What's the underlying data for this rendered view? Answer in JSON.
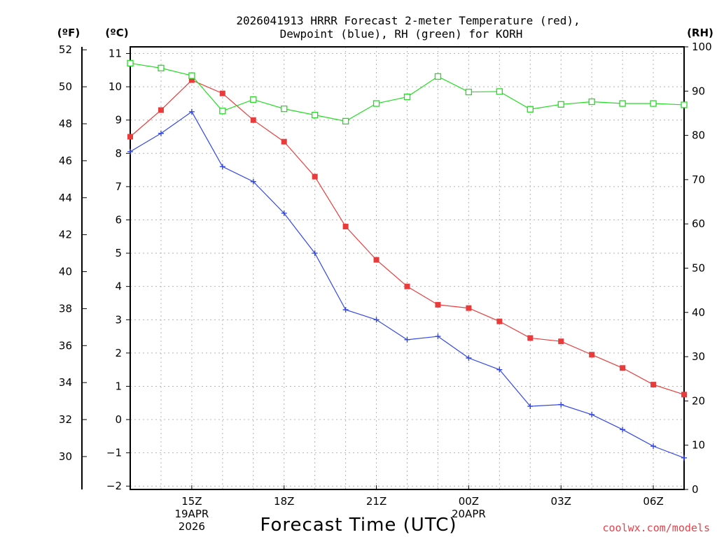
{
  "chart_data": {
    "type": "line",
    "title_lines": [
      "2026041913 HRRR Forecast 2-meter Temperature (red),",
      "Dewpoint (blue), RH (green) for KORH"
    ],
    "xlabel": "Forecast Time (UTC)",
    "credit": "coolwx.com/models",
    "units": {
      "fahrenheit": "(ºF)",
      "celsius": "(ºC)",
      "rh": "(RH)"
    },
    "x_hours": [
      13,
      14,
      15,
      16,
      17,
      18,
      19,
      20,
      21,
      22,
      23,
      24,
      25,
      26,
      27,
      28,
      29,
      30,
      31
    ],
    "xlim": [
      13,
      31
    ],
    "celsius_range": [
      -2.1,
      11.2
    ],
    "celsius_ticks": [
      -2,
      -1,
      0,
      1,
      2,
      3,
      4,
      5,
      6,
      7,
      8,
      9,
      10,
      11
    ],
    "fahrenheit_ticks": [
      30,
      32,
      34,
      36,
      38,
      40,
      42,
      44,
      46,
      48,
      50,
      52
    ],
    "rh_range": [
      0,
      100
    ],
    "rh_ticks": [
      0,
      10,
      20,
      30,
      40,
      50,
      60,
      70,
      80,
      90,
      100
    ],
    "x_tick_labels": [
      {
        "hour": 15,
        "lines": [
          "15Z",
          "19APR",
          "2026"
        ]
      },
      {
        "hour": 18,
        "lines": [
          "18Z"
        ]
      },
      {
        "hour": 21,
        "lines": [
          "21Z"
        ]
      },
      {
        "hour": 24,
        "lines": [
          "00Z",
          "20APR"
        ]
      },
      {
        "hour": 27,
        "lines": [
          "03Z"
        ]
      },
      {
        "hour": 30,
        "lines": [
          "06Z"
        ]
      }
    ],
    "series": [
      {
        "name": "Temperature",
        "color": "#e83c3c",
        "axis": "celsius",
        "marker": "filled-square",
        "values": [
          8.5,
          9.3,
          10.2,
          9.8,
          9.0,
          8.35,
          7.3,
          5.8,
          4.8,
          4.0,
          3.45,
          3.35,
          2.95,
          2.45,
          2.35,
          1.95,
          1.55,
          1.05,
          0.75
        ]
      },
      {
        "name": "Dewpoint",
        "color": "#3348e6",
        "axis": "celsius",
        "marker": "plus",
        "values": [
          8.05,
          8.6,
          9.25,
          7.6,
          7.15,
          6.2,
          5.0,
          3.3,
          3.0,
          2.4,
          2.5,
          1.85,
          1.5,
          0.4,
          0.45,
          0.15,
          -0.3,
          -0.8,
          -1.15
        ]
      },
      {
        "name": "RH",
        "color": "#22dd22",
        "axis": "rh",
        "marker": "open-square",
        "values": [
          96.3,
          95.2,
          93.5,
          85.5,
          88.1,
          86.0,
          84.6,
          83.2,
          87.2,
          88.7,
          93.3,
          89.8,
          89.9,
          85.9,
          87.0,
          87.6,
          87.2,
          87.2,
          86.9
        ]
      }
    ]
  }
}
